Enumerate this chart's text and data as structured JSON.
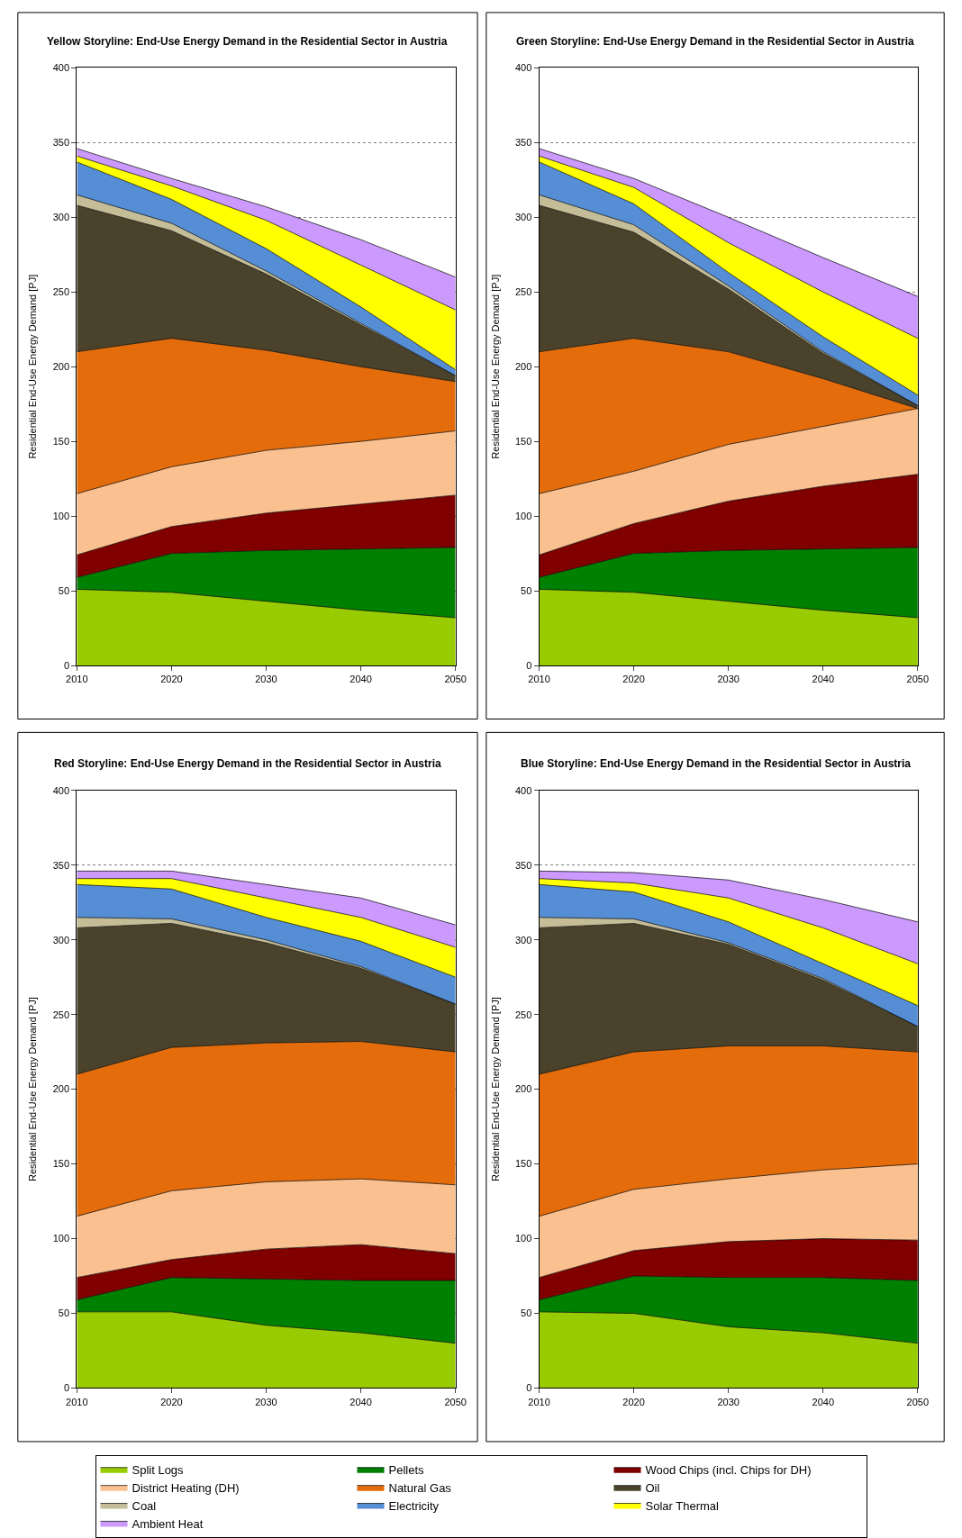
{
  "chart_data": [
    {
      "type": "area",
      "title": "Yellow Storyline: End-Use Energy Demand in the Residential Sector in Austria",
      "ylabel": "Residential End-Use Energy Demand [PJ]",
      "x": [
        2010,
        2020,
        2030,
        2040,
        2050
      ],
      "xlim": [
        2010,
        2050
      ],
      "xticks": [
        2010,
        2020,
        2030,
        2040,
        2050
      ],
      "ylim": [
        0,
        400
      ],
      "yticks": [
        0,
        50,
        100,
        150,
        200,
        250,
        300,
        350,
        400
      ],
      "grid": "y",
      "stacked": true,
      "legend": "bottom",
      "series": [
        {
          "name": "Split Logs",
          "color": "#99cc00",
          "values": [
            51,
            49,
            43,
            37,
            32
          ]
        },
        {
          "name": "Pellets",
          "color": "#008000",
          "values": [
            8,
            26,
            34,
            41,
            47
          ]
        },
        {
          "name": "Wood Chips (incl. Chips for DH)",
          "color": "#800000",
          "values": [
            15,
            18,
            25,
            30,
            35
          ]
        },
        {
          "name": "District Heating (DH)",
          "color": "#fac090",
          "values": [
            41,
            40,
            42,
            42,
            43
          ]
        },
        {
          "name": "Natural Gas",
          "color": "#e46c0a",
          "values": [
            95,
            86,
            67,
            50,
            33
          ]
        },
        {
          "name": "Oil",
          "color": "#4a422a",
          "values": [
            98,
            72,
            51,
            28,
            4
          ]
        },
        {
          "name": "Coal",
          "color": "#c4bd97",
          "values": [
            7,
            5,
            2,
            1,
            0
          ]
        },
        {
          "name": "Electricity",
          "color": "#558ed5",
          "values": [
            22,
            16,
            15,
            11,
            4
          ]
        },
        {
          "name": "Solar Thermal",
          "color": "#ffff00",
          "values": [
            4,
            9,
            19,
            28,
            40
          ]
        },
        {
          "name": "Ambient Heat",
          "color": "#cc99ff",
          "values": [
            5,
            5,
            9,
            17,
            22
          ]
        }
      ]
    },
    {
      "type": "area",
      "title": "Green Storyline: End-Use Energy Demand in the Residential Sector in Austria",
      "ylabel": "Residential End-Use Energy Demand [PJ]",
      "x": [
        2010,
        2020,
        2030,
        2040,
        2050
      ],
      "xlim": [
        2010,
        2050
      ],
      "xticks": [
        2010,
        2020,
        2030,
        2040,
        2050
      ],
      "ylim": [
        0,
        400
      ],
      "yticks": [
        0,
        50,
        100,
        150,
        200,
        250,
        300,
        350,
        400
      ],
      "grid": "y",
      "stacked": true,
      "series": [
        {
          "color": "#99cc00",
          "values": [
            51,
            49,
            43,
            37,
            32
          ]
        },
        {
          "color": "#008000",
          "values": [
            8,
            26,
            34,
            41,
            47
          ]
        },
        {
          "color": "#800000",
          "values": [
            15,
            20,
            33,
            42,
            49
          ]
        },
        {
          "color": "#fac090",
          "values": [
            41,
            35,
            38,
            40,
            44
          ]
        },
        {
          "color": "#e46c0a",
          "values": [
            95,
            89,
            62,
            32,
            0
          ]
        },
        {
          "color": "#4a422a",
          "values": [
            98,
            71,
            42,
            17,
            2
          ]
        },
        {
          "color": "#c4bd97",
          "values": [
            7,
            5,
            2,
            1,
            0
          ]
        },
        {
          "color": "#558ed5",
          "values": [
            22,
            14,
            9,
            10,
            7
          ]
        },
        {
          "color": "#ffff00",
          "values": [
            4,
            11,
            20,
            30,
            38
          ]
        },
        {
          "color": "#cc99ff",
          "values": [
            5,
            6,
            17,
            23,
            28
          ]
        }
      ]
    },
    {
      "type": "area",
      "title": "Red Storyline: End-Use Energy Demand in the Residential Sector in Austria",
      "ylabel": "Residential End-Use Energy Demand [PJ]",
      "x": [
        2010,
        2020,
        2030,
        2040,
        2050
      ],
      "xlim": [
        2010,
        2050
      ],
      "xticks": [
        2010,
        2020,
        2030,
        2040,
        2050
      ],
      "ylim": [
        0,
        400
      ],
      "yticks": [
        0,
        50,
        100,
        150,
        200,
        250,
        300,
        350,
        400
      ],
      "grid": "y",
      "stacked": true,
      "series": [
        {
          "color": "#99cc00",
          "values": [
            51,
            51,
            42,
            37,
            30
          ]
        },
        {
          "color": "#008000",
          "values": [
            8,
            23,
            31,
            35,
            42
          ]
        },
        {
          "color": "#800000",
          "values": [
            15,
            12,
            20,
            24,
            18
          ]
        },
        {
          "color": "#fac090",
          "values": [
            41,
            46,
            45,
            44,
            46
          ]
        },
        {
          "color": "#e46c0a",
          "values": [
            95,
            96,
            93,
            92,
            89
          ]
        },
        {
          "color": "#4a422a",
          "values": [
            98,
            83,
            67,
            49,
            32
          ]
        },
        {
          "color": "#c4bd97",
          "values": [
            7,
            3,
            2,
            1,
            0
          ]
        },
        {
          "color": "#558ed5",
          "values": [
            22,
            20,
            15,
            17,
            18
          ]
        },
        {
          "color": "#ffff00",
          "values": [
            4,
            7,
            13,
            16,
            20
          ]
        },
        {
          "color": "#cc99ff",
          "values": [
            5,
            5,
            9,
            13,
            15
          ]
        }
      ]
    },
    {
      "type": "area",
      "title": "Blue Storyline: End-Use Energy Demand in the Residential Sector in Austria",
      "ylabel": "Residential End-Use Energy Demand [PJ]",
      "x": [
        2010,
        2020,
        2030,
        2040,
        2050
      ],
      "xlim": [
        2010,
        2050
      ],
      "xticks": [
        2010,
        2020,
        2030,
        2040,
        2050
      ],
      "ylim": [
        0,
        400
      ],
      "yticks": [
        0,
        50,
        100,
        150,
        200,
        250,
        300,
        350,
        400
      ],
      "grid": "y",
      "stacked": true,
      "series": [
        {
          "color": "#99cc00",
          "values": [
            51,
            50,
            41,
            37,
            30
          ]
        },
        {
          "color": "#008000",
          "values": [
            8,
            25,
            33,
            37,
            42
          ]
        },
        {
          "color": "#800000",
          "values": [
            15,
            17,
            24,
            26,
            27
          ]
        },
        {
          "color": "#fac090",
          "values": [
            41,
            41,
            42,
            46,
            51
          ]
        },
        {
          "color": "#e46c0a",
          "values": [
            95,
            92,
            89,
            83,
            75
          ]
        },
        {
          "color": "#4a422a",
          "values": [
            98,
            86,
            68,
            44,
            17
          ]
        },
        {
          "color": "#c4bd97",
          "values": [
            7,
            3,
            1,
            1,
            0
          ]
        },
        {
          "color": "#558ed5",
          "values": [
            22,
            18,
            14,
            10,
            14
          ]
        },
        {
          "color": "#ffff00",
          "values": [
            4,
            6,
            16,
            24,
            28
          ]
        },
        {
          "color": "#cc99ff",
          "values": [
            5,
            7,
            12,
            19,
            28
          ]
        }
      ]
    }
  ]
}
